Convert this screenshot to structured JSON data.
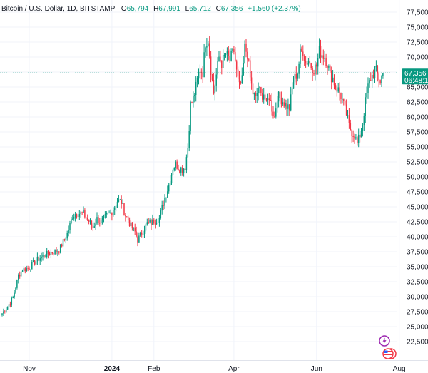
{
  "header": {
    "symbol": "Bitcoin / U.S. Dollar, 1D, BITSTAMP",
    "o_label": "O",
    "o_value": "65,794",
    "h_label": "H",
    "h_value": "67,991",
    "l_label": "L",
    "l_value": "65,712",
    "c_label": "C",
    "c_value": "67,356",
    "change": "+1,560 (+2.37%)"
  },
  "last_price": {
    "value": "67,356",
    "countdown": "06:48:1"
  },
  "colors": {
    "up": "#089981",
    "down": "#f23645",
    "grid": "#f0f3fa",
    "axis_text": "#131722",
    "last_line": "#089981"
  },
  "icons": {
    "flash": "lightning-icon",
    "flags": "us-flag-icon"
  },
  "chart_data": {
    "type": "candlestick",
    "title": "Bitcoin / U.S. Dollar, 1D, BITSTAMP",
    "ylim": [
      22000,
      78500
    ],
    "y_ticks": [
      22500,
      25000,
      27500,
      30000,
      32500,
      35000,
      37500,
      40000,
      42500,
      45000,
      47500,
      50000,
      52500,
      55000,
      57500,
      60000,
      62500,
      65000,
      67500,
      70000,
      72500,
      75000,
      77500
    ],
    "y_tick_labels": [
      "22,500",
      "25,000",
      "27,500",
      "30,000",
      "32,500",
      "35,000",
      "37,500",
      "40,000",
      "42,500",
      "45,000",
      "47,500",
      "50,000",
      "52,500",
      "55,000",
      "57,500",
      "60,000",
      "62,500",
      "65,000",
      "67,500",
      "70,000",
      "72,500",
      "75,000",
      "77,500"
    ],
    "x_labels": [
      {
        "text": "Nov",
        "day": 20
      },
      {
        "text": "2024",
        "day": 81,
        "bold": true
      },
      {
        "text": "Feb",
        "day": 112
      },
      {
        "text": "Apr",
        "day": 171
      },
      {
        "text": "Jun",
        "day": 232
      },
      {
        "text": "Aug",
        "day": 293
      }
    ],
    "n_days": 300,
    "anchors": [
      [
        0,
        27200
      ],
      [
        4,
        28400
      ],
      [
        8,
        29800
      ],
      [
        12,
        33500
      ],
      [
        15,
        34500
      ],
      [
        20,
        34800
      ],
      [
        24,
        35800
      ],
      [
        28,
        36500
      ],
      [
        32,
        37000
      ],
      [
        38,
        37500
      ],
      [
        42,
        37800
      ],
      [
        48,
        40500
      ],
      [
        52,
        43500
      ],
      [
        55,
        44000
      ],
      [
        60,
        43800
      ],
      [
        64,
        42600
      ],
      [
        67,
        41600
      ],
      [
        70,
        43000
      ],
      [
        73,
        42400
      ],
      [
        77,
        43500
      ],
      [
        81,
        44200
      ],
      [
        85,
        46000
      ],
      [
        88,
        45800
      ],
      [
        91,
        43600
      ],
      [
        93,
        42800
      ],
      [
        95,
        41800
      ],
      [
        98,
        40800
      ],
      [
        100,
        39400
      ],
      [
        103,
        40700
      ],
      [
        107,
        42200
      ],
      [
        110,
        42300
      ],
      [
        113,
        42800
      ],
      [
        116,
        43100
      ],
      [
        120,
        46500
      ],
      [
        123,
        48600
      ],
      [
        126,
        51500
      ],
      [
        128,
        52100
      ],
      [
        131,
        51500
      ],
      [
        133,
        51300
      ],
      [
        135,
        51700
      ],
      [
        137,
        55000
      ],
      [
        139,
        62000
      ],
      [
        141,
        63000
      ],
      [
        144,
        66000
      ],
      [
        146,
        68000
      ],
      [
        148,
        67500
      ],
      [
        150,
        72500
      ],
      [
        152,
        73000
      ],
      [
        154,
        68000
      ],
      [
        156,
        64000
      ],
      [
        158,
        67000
      ],
      [
        160,
        70000
      ],
      [
        162,
        69000
      ],
      [
        165,
        70500
      ],
      [
        168,
        69500
      ],
      [
        171,
        71000
      ],
      [
        173,
        67500
      ],
      [
        175,
        65000
      ],
      [
        177,
        66000
      ],
      [
        179,
        71500
      ],
      [
        181,
        70500
      ],
      [
        183,
        66500
      ],
      [
        185,
        64000
      ],
      [
        187,
        63000
      ],
      [
        189,
        65000
      ],
      [
        191,
        63500
      ],
      [
        193,
        64000
      ],
      [
        195,
        62000
      ],
      [
        197,
        63500
      ],
      [
        199,
        61500
      ],
      [
        201,
        60000
      ],
      [
        203,
        63500
      ],
      [
        206,
        63000
      ],
      [
        209,
        62000
      ],
      [
        212,
        61500
      ],
      [
        215,
        66000
      ],
      [
        218,
        67500
      ],
      [
        220,
        70500
      ],
      [
        222,
        71000
      ],
      [
        224,
        69000
      ],
      [
        226,
        69500
      ],
      [
        228,
        68500
      ],
      [
        230,
        68000
      ],
      [
        232,
        68500
      ],
      [
        234,
        71000
      ],
      [
        236,
        70500
      ],
      [
        238,
        70000
      ],
      [
        240,
        69000
      ],
      [
        242,
        67000
      ],
      [
        244,
        66500
      ],
      [
        246,
        65000
      ],
      [
        248,
        64500
      ],
      [
        250,
        63500
      ],
      [
        252,
        62000
      ],
      [
        254,
        60500
      ],
      [
        256,
        58500
      ],
      [
        258,
        57500
      ],
      [
        260,
        57000
      ],
      [
        262,
        55500
      ],
      [
        264,
        57000
      ],
      [
        266,
        59000
      ],
      [
        268,
        62500
      ],
      [
        270,
        65000
      ],
      [
        272,
        66500
      ],
      [
        274,
        67200
      ],
      [
        275,
        68000
      ],
      [
        277,
        67000
      ],
      [
        279,
        66000
      ],
      [
        281,
        67356
      ]
    ]
  }
}
